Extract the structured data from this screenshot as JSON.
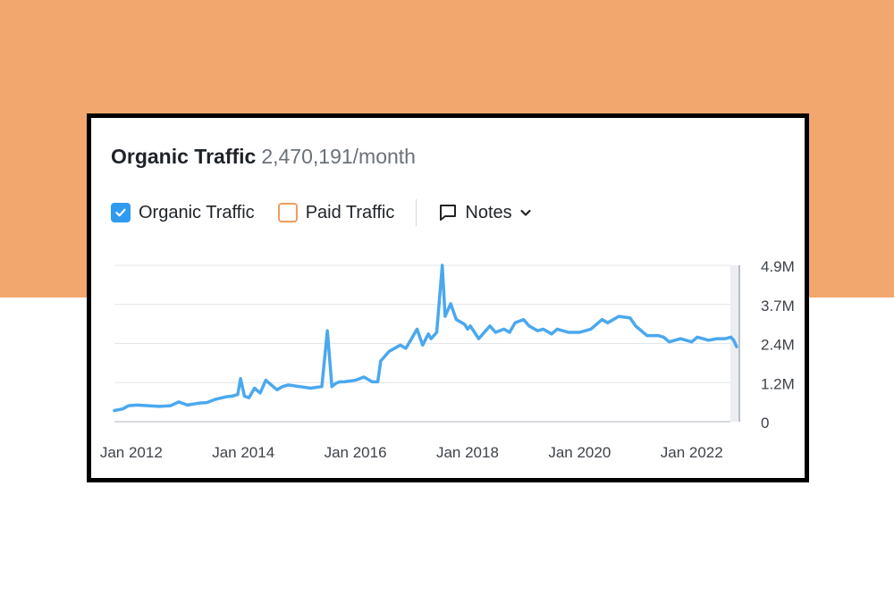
{
  "header": {
    "title": "Organic Traffic",
    "value": "2,470,191/month"
  },
  "legend": {
    "organic_label": "Organic Traffic",
    "paid_label": "Paid Traffic",
    "notes_label": "Notes",
    "organic_checked": true,
    "paid_checked": false
  },
  "colors": {
    "band": "#f1a76d",
    "line": "#4aa8ef",
    "checkbox": "#2f9bf0",
    "paid_checkbox": "#f29c5e",
    "grid": "#e3e6ea"
  },
  "icons": {
    "check": "check-icon",
    "notes": "speech-bubble-icon",
    "chevron": "chevron-down-icon"
  },
  "chart_data": {
    "type": "line",
    "title": "Organic Traffic",
    "xlabel": "",
    "ylabel": "",
    "xlim": [
      2011.7,
      2022.85
    ],
    "ylim": [
      0,
      4.9
    ],
    "x_ticks": [
      2012,
      2014,
      2016,
      2018,
      2020,
      2022
    ],
    "x_tick_labels": [
      "Jan 2012",
      "Jan 2014",
      "Jan 2016",
      "Jan 2018",
      "Jan 2020",
      "Jan 2022"
    ],
    "y_ticks": [
      0,
      1.225,
      2.45,
      3.675,
      4.9
    ],
    "y_tick_labels": [
      "0",
      "1.2M",
      "2.4M",
      "3.7M",
      "4.9M"
    ],
    "y_axis_position": "right",
    "grid": true,
    "series": [
      {
        "name": "Organic Traffic",
        "x": [
          2011.7,
          2011.85,
          2011.95,
          2012.1,
          2012.3,
          2012.5,
          2012.7,
          2012.85,
          2013.0,
          2013.1,
          2013.2,
          2013.35,
          2013.5,
          2013.7,
          2013.8,
          2013.9,
          2013.95,
          2014.02,
          2014.1,
          2014.2,
          2014.3,
          2014.4,
          2014.5,
          2014.6,
          2014.7,
          2014.8,
          2015.0,
          2015.2,
          2015.4,
          2015.5,
          2015.58,
          2015.65,
          2015.72,
          2015.8,
          2016.0,
          2016.15,
          2016.3,
          2016.4,
          2016.45,
          2016.6,
          2016.8,
          2016.9,
          2017.0,
          2017.1,
          2017.2,
          2017.3,
          2017.35,
          2017.45,
          2017.55,
          2017.6,
          2017.7,
          2017.8,
          2017.9,
          2017.95,
          2018.0,
          2018.05,
          2018.2,
          2018.4,
          2018.5,
          2018.65,
          2018.75,
          2018.85,
          2019.0,
          2019.1,
          2019.25,
          2019.35,
          2019.5,
          2019.6,
          2019.8,
          2020.0,
          2020.2,
          2020.4,
          2020.5,
          2020.7,
          2020.9,
          2021.0,
          2021.1,
          2021.2,
          2021.4,
          2021.5,
          2021.6,
          2021.8,
          2022.0,
          2022.1,
          2022.2,
          2022.3,
          2022.45,
          2022.6,
          2022.7,
          2022.75,
          2022.8
        ],
        "values": [
          0.35,
          0.4,
          0.5,
          0.52,
          0.5,
          0.48,
          0.5,
          0.62,
          0.52,
          0.55,
          0.58,
          0.6,
          0.7,
          0.78,
          0.8,
          0.85,
          1.35,
          0.8,
          0.75,
          1.05,
          0.9,
          1.3,
          1.15,
          1.0,
          1.1,
          1.15,
          1.1,
          1.05,
          1.1,
          2.85,
          1.1,
          1.2,
          1.25,
          1.25,
          1.3,
          1.4,
          1.25,
          1.25,
          1.9,
          2.2,
          2.4,
          2.3,
          2.6,
          2.9,
          2.4,
          2.75,
          2.6,
          2.8,
          4.9,
          3.3,
          3.7,
          3.2,
          3.1,
          3.05,
          2.9,
          3.0,
          2.6,
          3.0,
          2.8,
          2.9,
          2.8,
          3.1,
          3.2,
          3.0,
          2.85,
          2.9,
          2.75,
          2.9,
          2.8,
          2.8,
          2.9,
          3.2,
          3.1,
          3.3,
          3.25,
          3.0,
          2.85,
          2.7,
          2.7,
          2.65,
          2.5,
          2.6,
          2.5,
          2.65,
          2.6,
          2.55,
          2.6,
          2.6,
          2.65,
          2.55,
          2.35
        ]
      }
    ]
  }
}
